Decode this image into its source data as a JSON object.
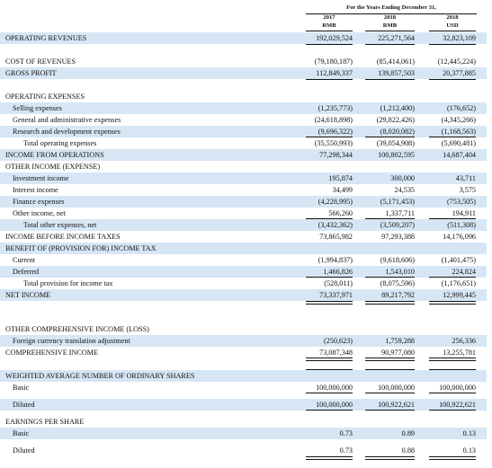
{
  "header": {
    "period": "For the Years Ending December 31,",
    "columns": [
      {
        "year": "2017",
        "currency": "RMB"
      },
      {
        "year": "2018",
        "currency": "RMB"
      },
      {
        "year": "2018",
        "currency": "USD"
      }
    ]
  },
  "rows": [
    {
      "label": "OPERATING REVENUES",
      "values": [
        "192,029,524",
        "225,271,564",
        "32,823,109"
      ]
    },
    {
      "label": "COST OF REVENUES",
      "values": [
        "(79,180,187)",
        "(85,414,061)",
        "(12,445,224)"
      ]
    },
    {
      "label": "GROSS PROFIT",
      "values": [
        "112,849,337",
        "139,857,503",
        "20,377,885"
      ]
    },
    {
      "label": "OPERATING EXPENSES",
      "values": [
        "",
        "",
        ""
      ]
    },
    {
      "label": "Selling expenses",
      "values": [
        "(1,235,773)",
        "(1,212,400)",
        "(176,652)"
      ]
    },
    {
      "label": "General and administrative expenses",
      "values": [
        "(24,618,898)",
        "(29,822,426)",
        "(4,345,266)"
      ]
    },
    {
      "label": "Research and development expenses",
      "values": [
        "(9,696,322)",
        "(8,020,082)",
        "(1,168,563)"
      ]
    },
    {
      "label": "Total operating expenses",
      "values": [
        "(35,550,993)",
        "(39,054,908)",
        "(5,690,481)"
      ]
    },
    {
      "label": "INCOME FROM OPERATIONS",
      "values": [
        "77,298,344",
        "100,802,595",
        "14,687,404"
      ]
    },
    {
      "label": "OTHER INCOME (EXPENSE)",
      "values": [
        "",
        "",
        ""
      ]
    },
    {
      "label": "Investment income",
      "values": [
        "195,874",
        "300,000",
        "43,711"
      ]
    },
    {
      "label": "Interest income",
      "values": [
        "34,499",
        "24,535",
        "3,575"
      ]
    },
    {
      "label": "Finance expenses",
      "values": [
        "(4,228,995)",
        "(5,171,453)",
        "(753,505)"
      ]
    },
    {
      "label": "Other income, net",
      "values": [
        "566,260",
        "1,337,711",
        "194,911"
      ]
    },
    {
      "label": "Total other expenses, net",
      "values": [
        "(3,432,362)",
        "(3,509,207)",
        "(511,308)"
      ]
    },
    {
      "label": "INCOME BEFORE INCOME TAXES",
      "values": [
        "73,865,982",
        "97,293,388",
        "14,176,096"
      ]
    },
    {
      "label": "BENEFIT OF (PROVISION FOR) INCOME TAX",
      "values": [
        "",
        "",
        ""
      ]
    },
    {
      "label": "Current",
      "values": [
        "(1,994,837)",
        "(9,618,606)",
        "(1,401,475)"
      ]
    },
    {
      "label": "Deferred",
      "values": [
        "1,466,826",
        "1,543,010",
        "224,824"
      ]
    },
    {
      "label": "Total provision for income tax",
      "values": [
        "(528,011)",
        "(8,075,596)",
        "(1,176,651)"
      ]
    },
    {
      "label": "NET INCOME",
      "values": [
        "73,337,971",
        "89,217,792",
        "12,999,445"
      ]
    },
    {
      "label": "OTHER COMPREHENSIVE INCOME (LOSS)",
      "values": [
        "",
        "",
        ""
      ]
    },
    {
      "label": "Foreign currency translation adjustment",
      "values": [
        "(250,623)",
        "1,759,288",
        "256,336"
      ]
    },
    {
      "label": "COMPREHENSIVE INCOME",
      "values": [
        "73,087,348",
        "90,977,080",
        "13,255,781"
      ]
    },
    {
      "label": "WEIGHTED AVERAGE NUMBER OF ORDINARY SHARES",
      "values": [
        "",
        "",
        ""
      ]
    },
    {
      "label": "Basic",
      "values": [
        "100,000,000",
        "100,000,000",
        "100,000,000"
      ]
    },
    {
      "label": "Diluted",
      "values": [
        "100,000,000",
        "100,922,621",
        "100,922,621"
      ]
    },
    {
      "label": "EARNINGS PER SHARE",
      "values": [
        "",
        "",
        ""
      ]
    },
    {
      "label": "Basic",
      "values": [
        "0.73",
        "0.89",
        "0.13"
      ]
    },
    {
      "label": "Diluted",
      "values": [
        "0.73",
        "0.88",
        "0.13"
      ]
    }
  ]
}
